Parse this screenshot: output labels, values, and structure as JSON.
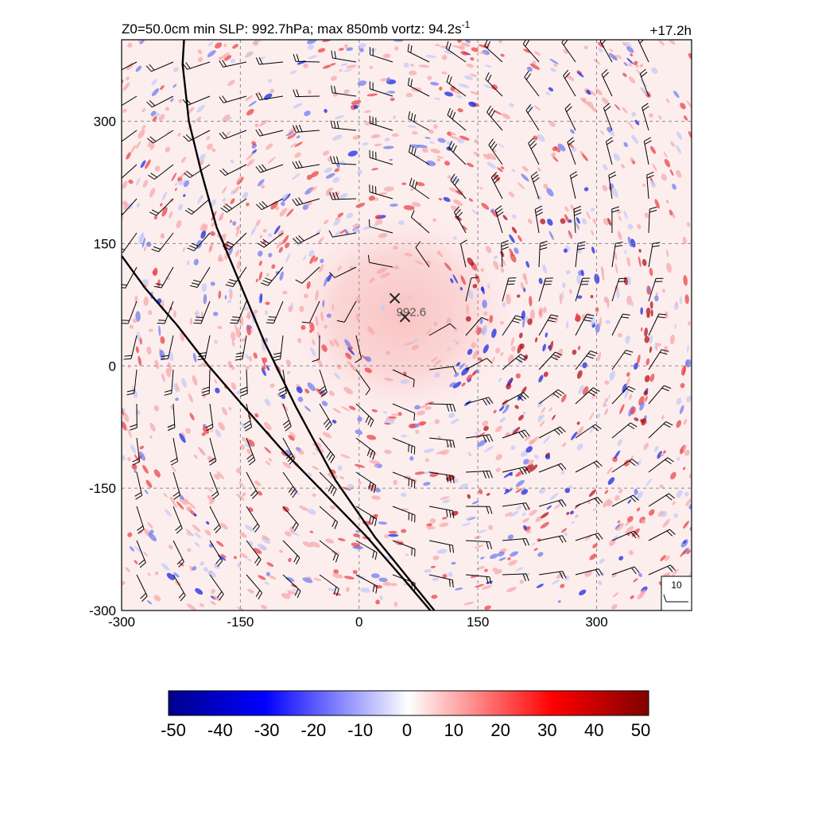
{
  "header": {
    "title_prefix": "Z0=50.0cm  min SLP: 992.7hPa; max 850mb vortz:  94.2s",
    "title_exponent": "-1",
    "forecast_time": "+17.2h"
  },
  "chart_data": {
    "type": "heatmap",
    "description_fields": "850mb relative vorticity shading with wind barbs",
    "xlim": [
      -300,
      420
    ],
    "ylim": [
      -300,
      400
    ],
    "x_ticks": [
      {
        "value": -300,
        "label": "-300"
      },
      {
        "value": -150,
        "label": "-150"
      },
      {
        "value": 0,
        "label": "0"
      },
      {
        "value": 150,
        "label": "150"
      },
      {
        "value": 300,
        "label": "300"
      }
    ],
    "y_ticks": [
      {
        "value": -300,
        "label": "-300"
      },
      {
        "value": -150,
        "label": "-150"
      },
      {
        "value": 0,
        "label": "0"
      },
      {
        "value": 150,
        "label": "150"
      },
      {
        "value": 300,
        "label": "300"
      }
    ],
    "grid": true,
    "grid_style": "dashed",
    "center_markers": [
      {
        "name": "center-marker-1",
        "x": 45,
        "y": 83
      },
      {
        "name": "center-marker-2",
        "x": 58,
        "y": 60
      }
    ],
    "center_label": {
      "text": "992.6",
      "x": 45,
      "y": 70
    },
    "vortex_center": [
      50,
      70
    ],
    "boundary_lines": [
      {
        "name": "coastline-outer",
        "points": [
          [
            -220,
            420
          ],
          [
            -223,
            370
          ],
          [
            -215,
            300
          ],
          [
            -200,
            240
          ],
          [
            -180,
            170
          ],
          [
            -150,
            100
          ],
          [
            -120,
            30
          ],
          [
            -80,
            -50
          ],
          [
            -30,
            -140
          ],
          [
            20,
            -210
          ],
          [
            70,
            -270
          ],
          [
            95,
            -300
          ]
        ]
      },
      {
        "name": "coastline-inner",
        "points": [
          [
            -300,
            135
          ],
          [
            -270,
            95
          ],
          [
            -230,
            50
          ],
          [
            -190,
            0
          ],
          [
            -150,
            -45
          ],
          [
            -100,
            -100
          ],
          [
            -40,
            -160
          ],
          [
            10,
            -210
          ],
          [
            55,
            -260
          ],
          [
            90,
            -300
          ]
        ]
      }
    ],
    "barb_reference": {
      "label": "10"
    },
    "colorbar": {
      "min": -50,
      "max": 50,
      "ticks": [
        {
          "value": -50,
          "label": "-50"
        },
        {
          "value": -40,
          "label": "-40"
        },
        {
          "value": -30,
          "label": "-30"
        },
        {
          "value": -20,
          "label": "-20"
        },
        {
          "value": -10,
          "label": "-10"
        },
        {
          "value": 0,
          "label": "0"
        },
        {
          "value": 10,
          "label": "10"
        },
        {
          "value": 20,
          "label": "20"
        },
        {
          "value": 30,
          "label": "30"
        },
        {
          "value": 40,
          "label": "40"
        },
        {
          "value": 50,
          "label": "50"
        }
      ],
      "colors": [
        "#00008b",
        "#0000ff",
        "#ffffff",
        "#ff0000",
        "#800000"
      ]
    }
  }
}
